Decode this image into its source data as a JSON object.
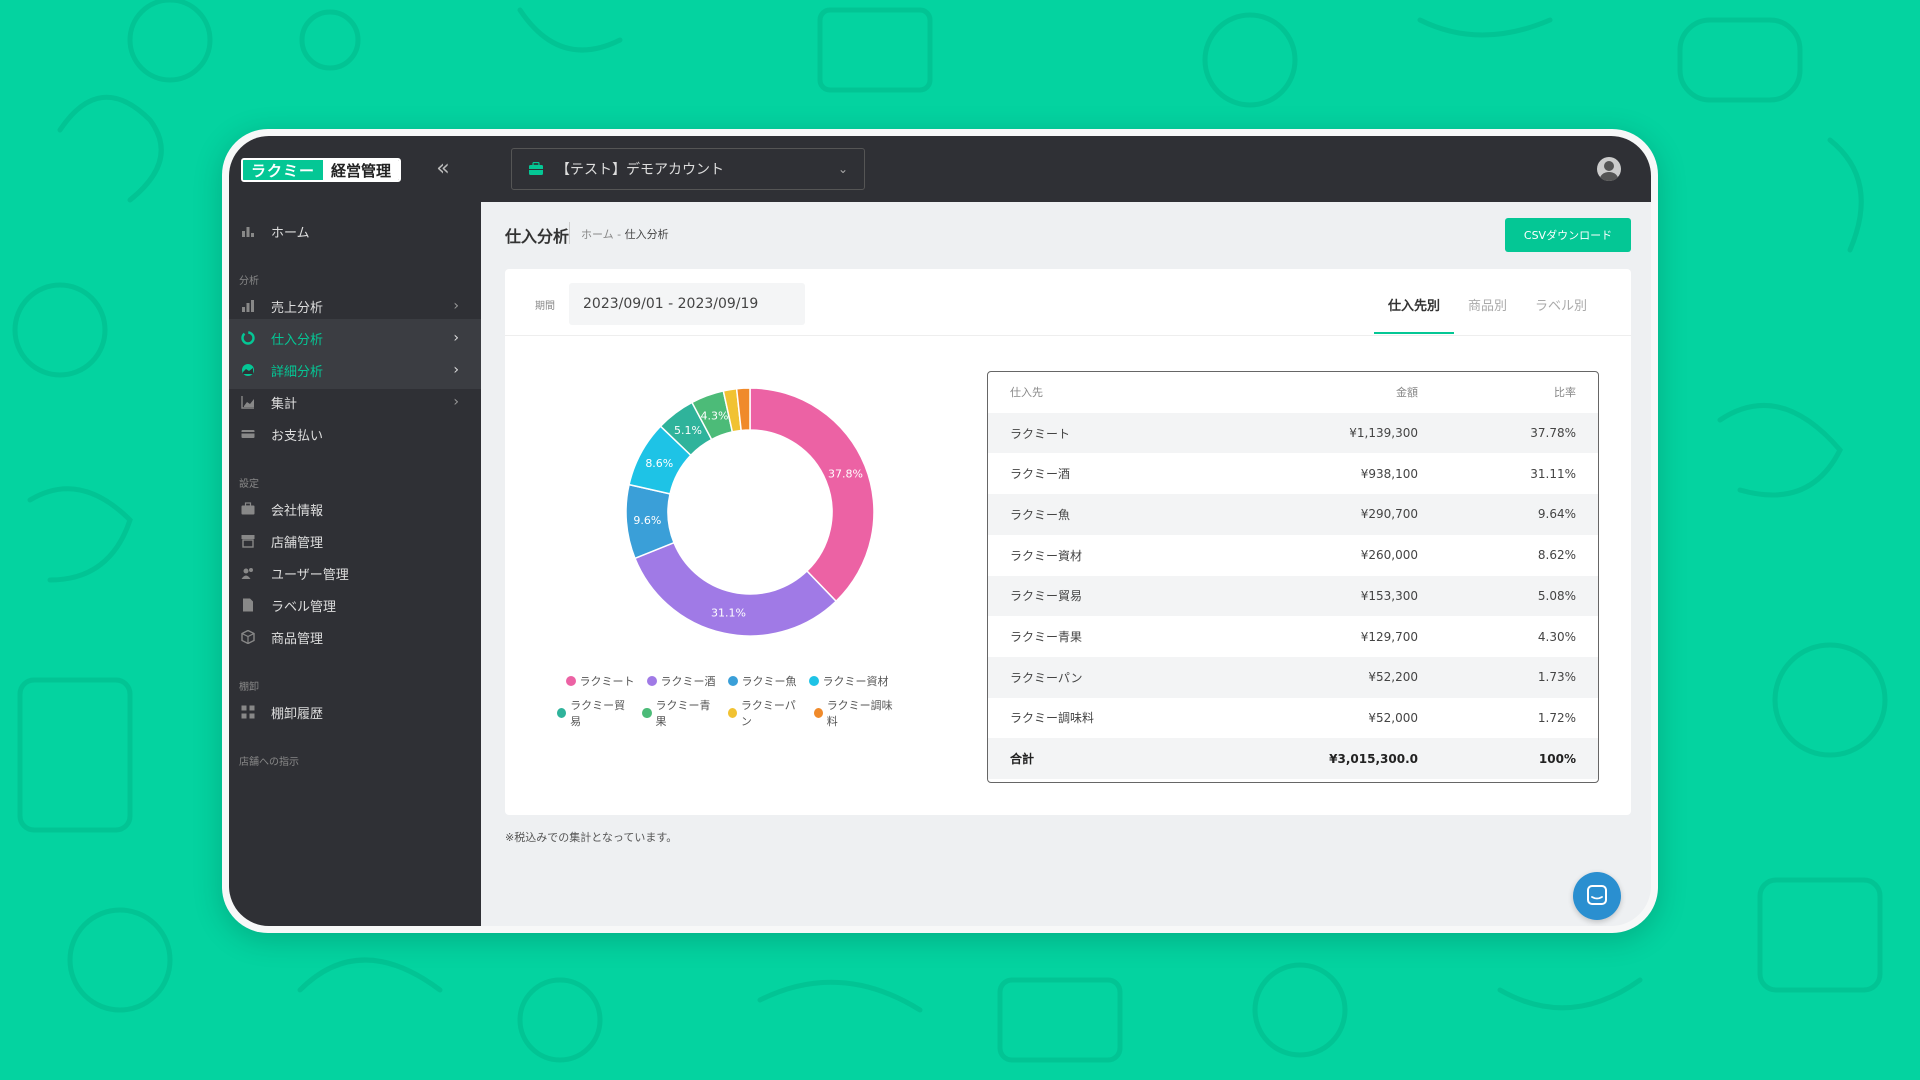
{
  "app": {
    "logo_primary": "ラクミー",
    "logo_secondary": "経営管理",
    "account_label": "【テスト】デモアカウント"
  },
  "sidebar": {
    "home": "ホーム",
    "section_analysis": "分析",
    "sales_analysis": "売上分析",
    "purchase_analysis": "仕入分析",
    "detail_analysis": "詳細分析",
    "aggregate": "集計",
    "payment": "お支払い",
    "section_settings": "設定",
    "company_info": "会社情報",
    "store_mgmt": "店舗管理",
    "user_mgmt": "ユーザー管理",
    "label_mgmt": "ラベル管理",
    "product_mgmt": "商品管理",
    "section_inventory": "棚卸",
    "inventory_history": "棚卸履歴",
    "section_store_instructions": "店舗への指示"
  },
  "page": {
    "title": "仕入分析",
    "breadcrumb_home": "ホーム",
    "breadcrumb_sep": "-",
    "breadcrumb_current": "仕入分析",
    "csv_button": "CSVダウンロード",
    "period_label": "期間",
    "period_value": "2023/09/01 - 2023/09/19",
    "tabs": [
      "仕入先別",
      "商品別",
      "ラベル別"
    ],
    "note": "※税込みでの集計となっています。"
  },
  "table": {
    "headers": [
      "仕入先",
      "金額",
      "比率"
    ],
    "rows": [
      [
        "ラクミート",
        "¥1,139,300",
        "37.78%"
      ],
      [
        "ラクミー酒",
        "¥938,100",
        "31.11%"
      ],
      [
        "ラクミー魚",
        "¥290,700",
        "9.64%"
      ],
      [
        "ラクミー資材",
        "¥260,000",
        "8.62%"
      ],
      [
        "ラクミー貿易",
        "¥153,300",
        "5.08%"
      ],
      [
        "ラクミー青果",
        "¥129,700",
        "4.30%"
      ],
      [
        "ラクミーパン",
        "¥52,200",
        "1.73%"
      ],
      [
        "ラクミー調味料",
        "¥52,000",
        "1.72%"
      ]
    ],
    "total": [
      "合計",
      "¥3,015,300.0",
      "100%"
    ]
  },
  "chart_data": {
    "type": "pie",
    "donut": true,
    "labels": [
      "ラクミート",
      "ラクミー酒",
      "ラクミー魚",
      "ラクミー資材",
      "ラクミー貿易",
      "ラクミー青果",
      "ラクミーパン",
      "ラクミー調味料"
    ],
    "values": [
      37.78,
      31.11,
      9.64,
      8.62,
      5.08,
      4.3,
      1.73,
      1.72
    ],
    "data_labels": [
      "37.8%",
      "31.1%",
      "9.6%",
      "8.6%",
      "5.1%",
      "4.3%",
      "",
      ""
    ],
    "colors": [
      "#ec62a4",
      "#a07ae6",
      "#3a9fd8",
      "#1ec3e6",
      "#2fb39b",
      "#4cbb78",
      "#f1c232",
      "#f08a2a"
    ],
    "legend_position": "bottom"
  },
  "colors": {
    "brand": "#04c795",
    "background": "#04d3a0",
    "sidebar": "#2f3035"
  }
}
